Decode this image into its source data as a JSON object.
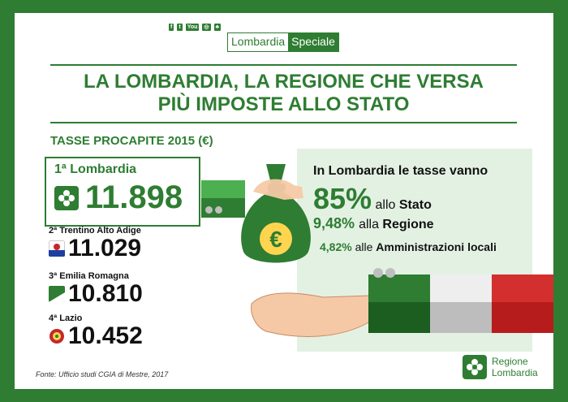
{
  "header": {
    "social_icons": [
      "facebook-icon",
      "twitter-icon",
      "youtube-icon",
      "instagram-icon",
      "leaf-icon"
    ],
    "brand_left": "Lombardia",
    "brand_right": "Speciale"
  },
  "headline": {
    "line1": "LA LOMBARDIA, LA REGIONE CHE VERSA",
    "line2": "PIÙ IMPOSTE ALLO STATO"
  },
  "subtitle": "TASSE PROCAPITE 2015 (€)",
  "ranking": [
    {
      "label": "1ª Lombardia",
      "value": "11.898"
    },
    {
      "label": "2ª Trentino Alto Adige",
      "value": "11.029"
    },
    {
      "label": "3ª Emilia Romagna",
      "value": "10.810"
    },
    {
      "label": "4ª Lazio",
      "value": "10.452"
    }
  ],
  "info": {
    "intro": "In Lombardia le tasse vanno",
    "pct1": "85%",
    "txt1_a": "allo ",
    "txt1_b": "Stato",
    "pct2": "9,48%",
    "txt2_a": "alla ",
    "txt2_b": "Regione",
    "pct3": "4,82%",
    "txt3_a": "alle ",
    "txt3_b": "Amministrazioni locali"
  },
  "source": "Fonte: Ufficio studi CGIA di Mestre, 2017",
  "logo": {
    "line1": "Regione",
    "line2": "Lombardia"
  },
  "colors": {
    "green": "#2e7d32",
    "light_green": "#e3f1e3",
    "flag_red": "#d32f2f"
  },
  "bag_symbol": "€"
}
